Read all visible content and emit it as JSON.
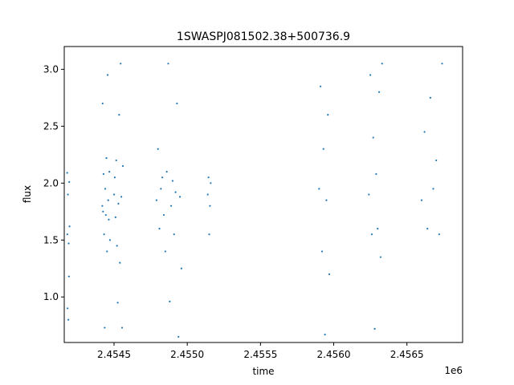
{
  "chart_data": {
    "type": "scatter",
    "title": "1SWASPJ081502.38+500736.9",
    "xlabel": "time",
    "ylabel": "flux",
    "x_offset_label": "1e6",
    "xlim": [
      2454160,
      2456880
    ],
    "ylim": [
      0.6,
      3.2
    ],
    "x_ticks": [
      {
        "value": 2454500,
        "label": "2.4545"
      },
      {
        "value": 2455000,
        "label": "2.4550"
      },
      {
        "value": 2455500,
        "label": "2.4555"
      },
      {
        "value": 2456000,
        "label": "2.4560"
      },
      {
        "value": 2456500,
        "label": "2.4565"
      }
    ],
    "y_ticks": [
      {
        "value": 1.0,
        "label": "1.0"
      },
      {
        "value": 1.5,
        "label": "1.5"
      },
      {
        "value": 2.0,
        "label": "2.0"
      },
      {
        "value": 2.5,
        "label": "2.5"
      },
      {
        "value": 3.0,
        "label": "3.0"
      }
    ],
    "grid": false,
    "marker_color": "#1f77b4",
    "series": [
      {
        "x": [
          2454180,
          2454181,
          2454183,
          2454185,
          2454188,
          2454190,
          2454192,
          2454194,
          2454196,
          2454420,
          2454422,
          2454425,
          2454428,
          2454432,
          2454436,
          2454440,
          2454444,
          2454448,
          2454452,
          2454456,
          2454460,
          2454464,
          2454468,
          2454472,
          2454500,
          2454505,
          2454510,
          2454515,
          2454520,
          2454525,
          2454530,
          2454535,
          2454540,
          2454545,
          2454550,
          2454555,
          2454560,
          2454790,
          2454800,
          2454810,
          2454820,
          2454830,
          2454840,
          2454850,
          2454860,
          2454870,
          2454880,
          2454890,
          2454900,
          2454910,
          2454920,
          2454930,
          2454940,
          2454950,
          2454960,
          2455140,
          2455145,
          2455150,
          2455155,
          2455160,
          2455900,
          2455910,
          2455920,
          2455930,
          2455940,
          2455950,
          2455960,
          2455970,
          2456240,
          2456250,
          2456260,
          2456270,
          2456280,
          2456290,
          2456300,
          2456310,
          2456320,
          2456330,
          2456600,
          2456620,
          2456640,
          2456660,
          2456680,
          2456700,
          2456720,
          2456740
        ],
        "y": [
          2.09,
          1.55,
          0.9,
          1.9,
          0.8,
          1.47,
          1.18,
          2.01,
          1.62,
          1.8,
          2.7,
          1.75,
          2.08,
          1.55,
          0.73,
          1.95,
          1.72,
          2.22,
          1.4,
          2.95,
          1.85,
          1.68,
          2.1,
          1.5,
          1.9,
          2.05,
          1.7,
          2.2,
          1.45,
          0.95,
          1.82,
          2.6,
          1.3,
          3.05,
          1.88,
          0.73,
          2.15,
          1.85,
          2.3,
          1.6,
          1.95,
          2.05,
          1.72,
          1.4,
          2.1,
          3.05,
          0.96,
          1.8,
          2.02,
          1.55,
          1.92,
          2.7,
          0.65,
          1.88,
          1.25,
          1.9,
          2.05,
          1.55,
          1.8,
          2.0,
          1.95,
          2.85,
          1.4,
          2.3,
          0.67,
          1.85,
          2.6,
          1.2,
          1.9,
          2.95,
          1.55,
          2.4,
          0.72,
          2.08,
          1.6,
          2.8,
          1.35,
          3.05,
          1.85,
          2.45,
          1.6,
          2.75,
          1.95,
          2.2,
          1.55,
          3.05
        ]
      }
    ]
  }
}
